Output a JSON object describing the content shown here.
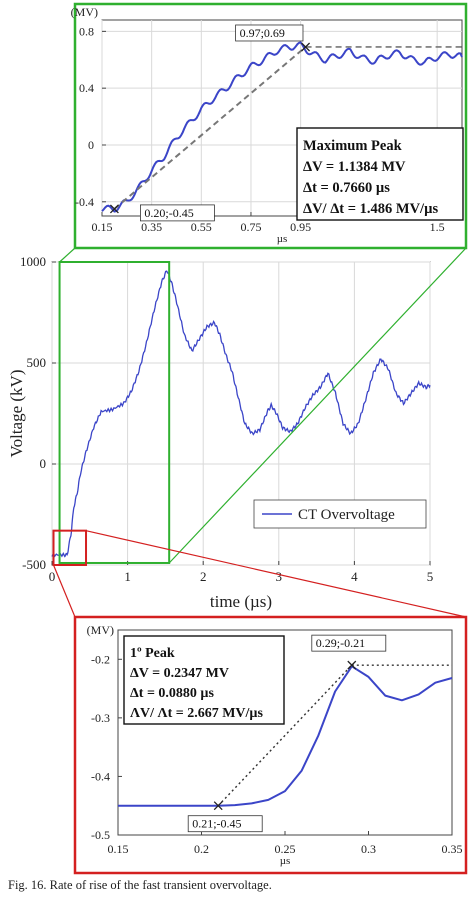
{
  "caption": "Fig. 16.  Rate of rise of the fast transient overvoltage.",
  "colors": {
    "trace": "#3b45c8",
    "zoom_top_frame": "#2fb02f",
    "zoom_bottom_frame": "#d42020",
    "dashed_ref": "#777777",
    "dotted_ref": "#333333",
    "grid": "#d9d9d9"
  },
  "chart_data": [
    {
      "id": "main",
      "type": "line",
      "xlabel": "time (µs)",
      "ylabel": "Voltage (kV)",
      "xlim": [
        0,
        5
      ],
      "ylim": [
        -500,
        1000
      ],
      "x_ticks": [
        0,
        1,
        2,
        3,
        4,
        5
      ],
      "x_tick_labels": [
        "0",
        "1",
        "2",
        "3",
        "4",
        "5"
      ],
      "y_ticks": [
        -500,
        0,
        500,
        1000
      ],
      "y_tick_labels": [
        "-500",
        "0",
        "500",
        "1000"
      ],
      "grid": true,
      "legend": {
        "placement": "bottom-right",
        "entries": [
          "CT Overvoltage"
        ]
      },
      "series": [
        {
          "name": "CT Overvoltage",
          "x": [
            0.0,
            0.15,
            0.2,
            0.25,
            0.29,
            0.33,
            0.38,
            0.45,
            0.55,
            0.65,
            0.8,
            0.95,
            1.05,
            1.15,
            1.25,
            1.35,
            1.45,
            1.52,
            1.58,
            1.65,
            1.75,
            1.85,
            1.95,
            2.05,
            2.15,
            2.22,
            2.3,
            2.38,
            2.45,
            2.55,
            2.65,
            2.75,
            2.85,
            2.9,
            2.97,
            3.05,
            3.15,
            3.25,
            3.35,
            3.45,
            3.55,
            3.65,
            3.75,
            3.85,
            3.95,
            4.05,
            4.15,
            4.25,
            4.35,
            4.45,
            4.55,
            4.65,
            4.75,
            4.85,
            4.95,
            5.0
          ],
          "y": [
            -450,
            -450,
            -450,
            -350,
            -210,
            -150,
            -40,
            60,
            180,
            260,
            270,
            300,
            360,
            460,
            600,
            760,
            900,
            960,
            900,
            800,
            640,
            560,
            620,
            680,
            700,
            640,
            540,
            460,
            350,
            200,
            150,
            170,
            260,
            290,
            250,
            180,
            160,
            200,
            280,
            340,
            380,
            450,
            350,
            200,
            150,
            200,
            320,
            450,
            520,
            470,
            350,
            300,
            350,
            400,
            380,
            390
          ]
        }
      ]
    },
    {
      "id": "zoom_top",
      "type": "line",
      "title": "",
      "unit_label": "(MV)",
      "xlabel": "µs",
      "xlim": [
        0.15,
        1.6
      ],
      "ylim": [
        -0.5,
        0.88
      ],
      "x_ticks": [
        0.15,
        0.35,
        0.55,
        0.75,
        0.95,
        1.5
      ],
      "x_tick_labels": [
        "0.15",
        "0.35",
        "0.55",
        "0.75",
        "0.95",
        "1.5"
      ],
      "y_ticks": [
        -0.4,
        0,
        0.4,
        0.8
      ],
      "y_tick_labels": [
        "-0.4",
        "0",
        "0.4",
        "0.8"
      ],
      "grid": true,
      "series": [
        {
          "name": "",
          "x": [
            0.15,
            0.2,
            0.25,
            0.3,
            0.35,
            0.4,
            0.45,
            0.5,
            0.55,
            0.6,
            0.65,
            0.7,
            0.75,
            0.8,
            0.85,
            0.9,
            0.95,
            1.0,
            1.05,
            1.1,
            1.15,
            1.2,
            1.25,
            1.3,
            1.35,
            1.4,
            1.45,
            1.5,
            1.55,
            1.6
          ],
          "y": [
            -0.45,
            -0.45,
            -0.4,
            -0.3,
            -0.18,
            -0.08,
            0.05,
            0.15,
            0.25,
            0.33,
            0.4,
            0.48,
            0.55,
            0.6,
            0.66,
            0.69,
            0.7,
            0.64,
            0.6,
            0.63,
            0.66,
            0.61,
            0.59,
            0.63,
            0.65,
            0.6,
            0.58,
            0.62,
            0.64,
            0.62
          ]
        }
      ],
      "annotations": [
        {
          "label": "0.20;-0.45",
          "x": 0.2,
          "y": -0.45
        },
        {
          "label": "0.97;0.69",
          "x": 0.97,
          "y": 0.69
        }
      ],
      "info_box": {
        "lines": [
          "Maximum Peak",
          "ΔV = 1.1384 MV",
          "Δt = 0.7660 µs",
          "ΔV/ Δt = 1.486 MV/µs"
        ]
      }
    },
    {
      "id": "zoom_bottom",
      "type": "line",
      "unit_label": "(MV)",
      "xlabel": "µs",
      "xlim": [
        0.15,
        0.35
      ],
      "ylim": [
        -0.5,
        -0.15
      ],
      "x_ticks": [
        0.15,
        0.2,
        0.25,
        0.3,
        0.35
      ],
      "x_tick_labels": [
        "0.15",
        "0.2",
        "0.25",
        "0.3",
        "0.35"
      ],
      "y_ticks": [
        -0.5,
        -0.4,
        -0.3,
        -0.2
      ],
      "y_tick_labels": [
        "-0.5",
        "-0.4",
        "-0.3",
        "-0.2"
      ],
      "grid": false,
      "series": [
        {
          "name": "",
          "x": [
            0.15,
            0.2,
            0.21,
            0.22,
            0.23,
            0.24,
            0.25,
            0.26,
            0.27,
            0.28,
            0.29,
            0.3,
            0.31,
            0.32,
            0.33,
            0.34,
            0.35
          ],
          "y": [
            -0.45,
            -0.45,
            -0.45,
            -0.449,
            -0.446,
            -0.44,
            -0.425,
            -0.39,
            -0.33,
            -0.255,
            -0.212,
            -0.23,
            -0.262,
            -0.27,
            -0.26,
            -0.24,
            -0.232
          ]
        }
      ],
      "annotations": [
        {
          "label": "0.21;-0.45",
          "x": 0.21,
          "y": -0.45
        },
        {
          "label": "0.29;-0.21",
          "x": 0.29,
          "y": -0.21
        }
      ],
      "info_box": {
        "lines": [
          "1º Peak",
          "ΔV = 0.2347 MV",
          "Δt = 0.0880 µs",
          "ΛV/ Λt = 2.667 MV/µs"
        ]
      }
    }
  ]
}
